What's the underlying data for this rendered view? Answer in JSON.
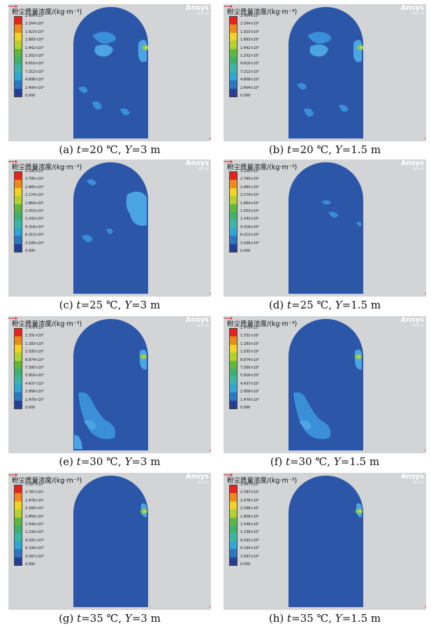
{
  "colorbar_title": "粉尘质量浓度/(kg·m⁻³)",
  "brand": "Ansys",
  "brand_version": "2022 R1",
  "axis_label": "x",
  "colorbar_colors": [
    "#e8231c",
    "#ef8a1a",
    "#f3d321",
    "#b6d12d",
    "#5fb83c",
    "#3fb16b",
    "#39b7a8",
    "#2ea6d6",
    "#2a78c2",
    "#253f99"
  ],
  "panels": [
    {
      "caption": {
        "label": "(a) ",
        "t": "t",
        "t_value": "=20 ℃, ",
        "y": "Y",
        "y_value": "=3 m"
      },
      "ticks": [
        "2.404×10¹",
        "2.164×10¹",
        "1.923×10¹",
        "1.683×10¹",
        "1.442×10¹",
        "1.202×10¹",
        "9.616×10⁰",
        "7.212×10⁰",
        "4.808×10⁰",
        "2.404×10⁰",
        "0.000"
      ]
    },
    {
      "caption": {
        "label": "(b) ",
        "t": "t",
        "t_value": "=20 ℃, ",
        "y": "Y",
        "y_value": "=1.5 m"
      },
      "ticks": [
        "2.404×10¹",
        "2.164×10¹",
        "1.923×10¹",
        "1.683×10¹",
        "1.442×10¹",
        "1.202×10¹",
        "9.616×10⁰",
        "7.212×10⁰",
        "4.808×10⁰",
        "2.404×10⁰",
        "0.000"
      ]
    },
    {
      "caption": {
        "label": "(c) ",
        "t": "t",
        "t_value": "=25 ℃, ",
        "y": "Y",
        "y_value": "=3 m"
      },
      "ticks": [
        "3.106×10¹",
        "2.795×10¹",
        "2.485×10¹",
        "2.174×10¹",
        "1.864×10¹",
        "1.553×10¹",
        "1.242×10¹",
        "9.318×10⁰",
        "6.212×10⁰",
        "3.106×10⁰",
        "0.000"
      ]
    },
    {
      "caption": {
        "label": "(d) ",
        "t": "t",
        "t_value": "=25 ℃, ",
        "y": "Y",
        "y_value": "=1.5 m"
      },
      "ticks": [
        "3.106×10¹",
        "2.795×10¹",
        "2.485×10¹",
        "2.174×10¹",
        "1.864×10¹",
        "1.553×10¹",
        "1.242×10¹",
        "9.318×10⁰",
        "6.212×10⁰",
        "3.106×10⁰",
        "0.000"
      ]
    },
    {
      "caption": {
        "label": "(e) ",
        "t": "t",
        "t_value": "=30 ℃, ",
        "y": "Y",
        "y_value": "=3 m"
      },
      "ticks": [
        "1.479×10¹",
        "1.331×10¹",
        "1.183×10¹",
        "1.035×10¹",
        "8.874×10⁰",
        "7.395×10⁰",
        "5.916×10⁰",
        "4.437×10⁰",
        "2.958×10⁰",
        "1.479×10⁰",
        "0.000"
      ]
    },
    {
      "caption": {
        "label": "(f) ",
        "t": "t",
        "t_value": "=30 ℃, ",
        "y": "Y",
        "y_value": "=1.5 m"
      },
      "ticks": [
        "1.479×10¹",
        "1.331×10¹",
        "1.183×10¹",
        "1.035×10¹",
        "8.874×10⁰",
        "7.395×10⁰",
        "5.916×10⁰",
        "4.437×10⁰",
        "2.958×10⁰",
        "1.479×10⁰",
        "0.000"
      ]
    },
    {
      "caption": {
        "label": "(g) ",
        "t": "t",
        "t_value": "=35 ℃, ",
        "y": "Y",
        "y_value": "=3 m"
      },
      "ticks": [
        "3.097×10¹",
        "2.787×10¹",
        "2.478×10¹",
        "2.168×10¹",
        "1.858×10¹",
        "1.549×10¹",
        "1.239×10¹",
        "9.291×10⁰",
        "6.194×10⁰",
        "3.097×10⁰",
        "0.000"
      ]
    },
    {
      "caption": {
        "label": "(h) ",
        "t": "t",
        "t_value": "=35 ℃, ",
        "y": "Y",
        "y_value": "=1.5 m"
      },
      "ticks": [
        "3.097×10¹",
        "2.787×10¹",
        "2.478×10¹",
        "2.168×10¹",
        "1.858×10¹",
        "1.549×10¹",
        "1.239×10¹",
        "9.291×10⁰",
        "6.194×10⁰",
        "3.097×10⁰",
        "0.000"
      ]
    }
  ]
}
